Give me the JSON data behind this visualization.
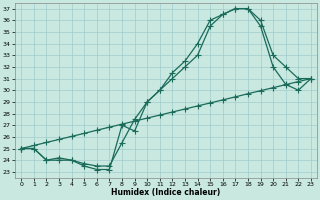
{
  "xlabel": "Humidex (Indice chaleur)",
  "bg_color": "#c8e8e0",
  "line_color": "#1a6b5a",
  "grid_color": "#a0cccc",
  "xlim": [
    -0.5,
    23.5
  ],
  "ylim": [
    22.5,
    37.5
  ],
  "xticks": [
    0,
    1,
    2,
    3,
    4,
    5,
    6,
    7,
    8,
    9,
    10,
    11,
    12,
    13,
    14,
    15,
    16,
    17,
    18,
    19,
    20,
    21,
    22,
    23
  ],
  "yticks": [
    23,
    24,
    25,
    26,
    27,
    28,
    29,
    30,
    31,
    32,
    33,
    34,
    35,
    36,
    37
  ],
  "line1_x": [
    0,
    1,
    2,
    3,
    4,
    5,
    6,
    7,
    8,
    9,
    10,
    11,
    12,
    13,
    14,
    15,
    16,
    17,
    18,
    19,
    20,
    21,
    22,
    23
  ],
  "line1_y": [
    25,
    25,
    24,
    24,
    24,
    23.5,
    23.2,
    23.2,
    27,
    26.5,
    29,
    30,
    31,
    32,
    33,
    35.5,
    36.5,
    37,
    37,
    36,
    33,
    32,
    31,
    31
  ],
  "line2_x": [
    0,
    1,
    2,
    3,
    4,
    5,
    6,
    7,
    8,
    9,
    10,
    11,
    12,
    13,
    14,
    15,
    16,
    17,
    18,
    19,
    20,
    21,
    22,
    23
  ],
  "line2_y": [
    25,
    25,
    24,
    24.2,
    24,
    23.7,
    23.5,
    23.5,
    25.5,
    27.5,
    29,
    30,
    31.5,
    32.5,
    34,
    36,
    36.5,
    37,
    37,
    35.5,
    32,
    30.5,
    30,
    31
  ],
  "line3_x": [
    0,
    1,
    2,
    3,
    4,
    5,
    6,
    7,
    8,
    9,
    10,
    11,
    12,
    13,
    14,
    15,
    16,
    17,
    18,
    19,
    20,
    21,
    22,
    23
  ],
  "line3_y": [
    25,
    25.26,
    25.52,
    25.78,
    26.04,
    26.3,
    26.57,
    26.83,
    27.09,
    27.35,
    27.61,
    27.87,
    28.13,
    28.39,
    28.65,
    28.91,
    29.17,
    29.43,
    29.7,
    29.96,
    30.22,
    30.48,
    30.74,
    31.0
  ],
  "marker": "+",
  "markersize": 4,
  "linewidth": 0.9
}
